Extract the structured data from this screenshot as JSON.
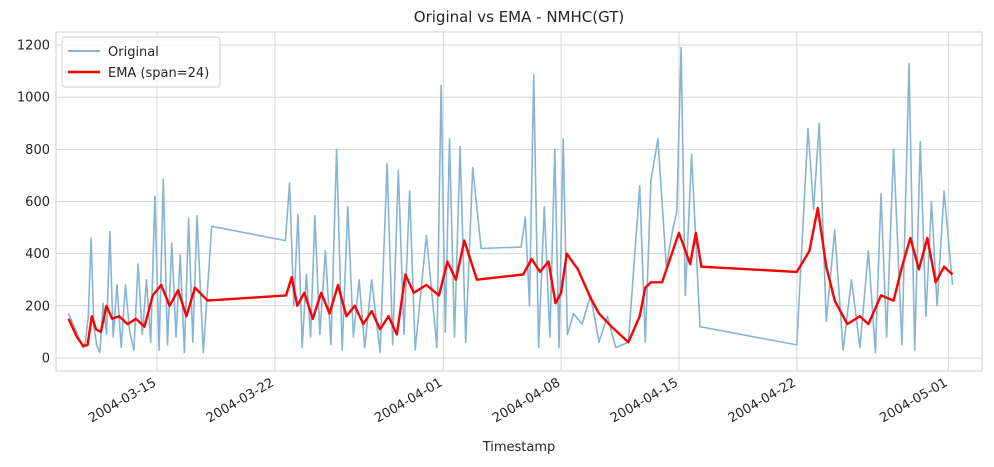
{
  "chart_data": {
    "type": "line",
    "title": "Original vs EMA - NMHC(GT)",
    "xlabel": "Timestamp",
    "ylabel": "",
    "x_axis": {
      "kind": "date",
      "range": [
        "2004-03-09",
        "2004-05-03"
      ],
      "tick_values": [
        "2004-03-15",
        "2004-03-22",
        "2004-04-01",
        "2004-04-08",
        "2004-04-15",
        "2004-04-22",
        "2004-05-01"
      ],
      "tick_labels": [
        "2004-03-15",
        "2004-03-22",
        "2004-04-01",
        "2004-04-08",
        "2004-04-15",
        "2004-04-22",
        "2004-05-01"
      ]
    },
    "y_axis": {
      "range": [
        -50,
        1250
      ],
      "tick_values": [
        0,
        200,
        400,
        600,
        800,
        1000,
        1200
      ],
      "tick_labels": [
        "0",
        "200",
        "400",
        "600",
        "800",
        "1000",
        "1200"
      ]
    },
    "grid": true,
    "legend_position": "top-left",
    "series": [
      {
        "name": "Original",
        "color": "#86b4d4",
        "points": [
          [
            "2004-03-10",
            170
          ],
          [
            "2004-03-10",
            95
          ],
          [
            "2004-03-11",
            40
          ],
          [
            "2004-03-11",
            60
          ],
          [
            "2004-03-11",
            160
          ],
          [
            "2004-03-11",
            460
          ],
          [
            "2004-03-11",
            120
          ],
          [
            "2004-03-11",
            50
          ],
          [
            "2004-03-12",
            20
          ],
          [
            "2004-03-12",
            210
          ],
          [
            "2004-03-12",
            90
          ],
          [
            "2004-03-12",
            485
          ],
          [
            "2004-03-12",
            80
          ],
          [
            "2004-03-13",
            280
          ],
          [
            "2004-03-13",
            40
          ],
          [
            "2004-03-13",
            280
          ],
          [
            "2004-03-13",
            100
          ],
          [
            "2004-03-14",
            30
          ],
          [
            "2004-03-14",
            360
          ],
          [
            "2004-03-14",
            90
          ],
          [
            "2004-03-14",
            300
          ],
          [
            "2004-03-15",
            60
          ],
          [
            "2004-03-15",
            620
          ],
          [
            "2004-03-15",
            30
          ],
          [
            "2004-03-15",
            685
          ],
          [
            "2004-03-16",
            50
          ],
          [
            "2004-03-16",
            440
          ],
          [
            "2004-03-16",
            80
          ],
          [
            "2004-03-16",
            395
          ],
          [
            "2004-03-17",
            20
          ],
          [
            "2004-03-17",
            535
          ],
          [
            "2004-03-17",
            60
          ],
          [
            "2004-03-17",
            545
          ],
          [
            "2004-03-18",
            20
          ],
          [
            "2004-03-18",
            505
          ],
          [
            "2004-03-23",
            450
          ],
          [
            "2004-03-23",
            670
          ],
          [
            "2004-03-23",
            200
          ],
          [
            "2004-03-23",
            550
          ],
          [
            "2004-03-24",
            40
          ],
          [
            "2004-03-24",
            320
          ],
          [
            "2004-03-24",
            80
          ],
          [
            "2004-03-24",
            545
          ],
          [
            "2004-03-25",
            90
          ],
          [
            "2004-03-25",
            410
          ],
          [
            "2004-03-25",
            50
          ],
          [
            "2004-03-26",
            800
          ],
          [
            "2004-03-26",
            30
          ],
          [
            "2004-03-26",
            580
          ],
          [
            "2004-03-27",
            80
          ],
          [
            "2004-03-27",
            300
          ],
          [
            "2004-03-27",
            40
          ],
          [
            "2004-03-28",
            300
          ],
          [
            "2004-03-28",
            20
          ],
          [
            "2004-03-29",
            745
          ],
          [
            "2004-03-29",
            50
          ],
          [
            "2004-03-29",
            720
          ],
          [
            "2004-03-30",
            90
          ],
          [
            "2004-03-30",
            640
          ],
          [
            "2004-03-30",
            30
          ],
          [
            "2004-03-31",
            470
          ],
          [
            "2004-04-01",
            40
          ],
          [
            "2004-04-01",
            1045
          ],
          [
            "2004-04-01",
            100
          ],
          [
            "2004-04-01",
            840
          ],
          [
            "2004-04-02",
            80
          ],
          [
            "2004-04-02",
            810
          ],
          [
            "2004-04-02",
            60
          ],
          [
            "2004-04-03",
            730
          ],
          [
            "2004-04-03",
            420
          ],
          [
            "2004-04-06",
            425
          ],
          [
            "2004-04-06",
            540
          ],
          [
            "2004-04-06",
            200
          ],
          [
            "2004-04-06",
            1085
          ],
          [
            "2004-04-07",
            40
          ],
          [
            "2004-04-07",
            580
          ],
          [
            "2004-04-07",
            80
          ],
          [
            "2004-04-08",
            800
          ],
          [
            "2004-04-08",
            40
          ],
          [
            "2004-04-08",
            840
          ],
          [
            "2004-04-08",
            90
          ],
          [
            "2004-04-09",
            170
          ],
          [
            "2004-04-09",
            130
          ],
          [
            "2004-04-10",
            240
          ],
          [
            "2004-04-10",
            60
          ],
          [
            "2004-04-11",
            160
          ],
          [
            "2004-04-11",
            40
          ],
          [
            "2004-04-12",
            60
          ],
          [
            "2004-04-13",
            660
          ],
          [
            "2004-04-13",
            60
          ],
          [
            "2004-04-13",
            680
          ],
          [
            "2004-04-14",
            840
          ],
          [
            "2004-04-14",
            350
          ],
          [
            "2004-04-15",
            490
          ],
          [
            "2004-04-15",
            560
          ],
          [
            "2004-04-15",
            1190
          ],
          [
            "2004-04-15",
            240
          ],
          [
            "2004-04-16",
            780
          ],
          [
            "2004-04-16",
            120
          ],
          [
            "2004-04-22",
            50
          ],
          [
            "2004-04-23",
            880
          ],
          [
            "2004-04-23",
            570
          ],
          [
            "2004-04-23",
            900
          ],
          [
            "2004-04-24",
            140
          ],
          [
            "2004-04-24",
            490
          ],
          [
            "2004-04-25",
            30
          ],
          [
            "2004-04-25",
            300
          ],
          [
            "2004-04-26",
            40
          ],
          [
            "2004-04-26",
            410
          ],
          [
            "2004-04-27",
            20
          ],
          [
            "2004-04-27",
            630
          ],
          [
            "2004-04-27",
            80
          ],
          [
            "2004-04-28",
            800
          ],
          [
            "2004-04-28",
            50
          ],
          [
            "2004-04-29",
            1130
          ],
          [
            "2004-04-29",
            30
          ],
          [
            "2004-04-29",
            830
          ],
          [
            "2004-04-30",
            160
          ],
          [
            "2004-04-30",
            600
          ],
          [
            "2004-04-30",
            200
          ],
          [
            "2004-05-01",
            640
          ],
          [
            "2004-05-01",
            280
          ]
        ]
      },
      {
        "name": "EMA (span=24)",
        "color": "#ff0000",
        "points": [
          [
            "2004-03-10",
            150
          ],
          [
            "2004-03-10",
            80
          ],
          [
            "2004-03-11",
            45
          ],
          [
            "2004-03-11",
            50
          ],
          [
            "2004-03-11",
            160
          ],
          [
            "2004-03-11",
            110
          ],
          [
            "2004-03-12",
            100
          ],
          [
            "2004-03-12",
            200
          ],
          [
            "2004-03-12",
            150
          ],
          [
            "2004-03-13",
            160
          ],
          [
            "2004-03-13",
            130
          ],
          [
            "2004-03-14",
            150
          ],
          [
            "2004-03-14",
            120
          ],
          [
            "2004-03-15",
            240
          ],
          [
            "2004-03-15",
            280
          ],
          [
            "2004-03-16",
            200
          ],
          [
            "2004-03-16",
            260
          ],
          [
            "2004-03-17",
            160
          ],
          [
            "2004-03-17",
            270
          ],
          [
            "2004-03-18",
            220
          ],
          [
            "2004-03-23",
            240
          ],
          [
            "2004-03-23",
            310
          ],
          [
            "2004-03-23",
            200
          ],
          [
            "2004-03-24",
            250
          ],
          [
            "2004-03-24",
            150
          ],
          [
            "2004-03-25",
            250
          ],
          [
            "2004-03-25",
            170
          ],
          [
            "2004-03-26",
            280
          ],
          [
            "2004-03-26",
            160
          ],
          [
            "2004-03-27",
            200
          ],
          [
            "2004-03-27",
            130
          ],
          [
            "2004-03-28",
            180
          ],
          [
            "2004-03-28",
            110
          ],
          [
            "2004-03-29",
            160
          ],
          [
            "2004-03-29",
            90
          ],
          [
            "2004-03-30",
            320
          ],
          [
            "2004-03-30",
            250
          ],
          [
            "2004-03-31",
            280
          ],
          [
            "2004-04-01",
            240
          ],
          [
            "2004-04-01",
            370
          ],
          [
            "2004-04-02",
            300
          ],
          [
            "2004-04-02",
            450
          ],
          [
            "2004-04-03",
            300
          ],
          [
            "2004-04-06",
            320
          ],
          [
            "2004-04-06",
            380
          ],
          [
            "2004-04-07",
            330
          ],
          [
            "2004-04-07",
            370
          ],
          [
            "2004-04-08",
            210
          ],
          [
            "2004-04-08",
            250
          ],
          [
            "2004-04-08",
            400
          ],
          [
            "2004-04-09",
            340
          ],
          [
            "2004-04-10",
            230
          ],
          [
            "2004-04-10",
            170
          ],
          [
            "2004-04-11",
            120
          ],
          [
            "2004-04-12",
            60
          ],
          [
            "2004-04-13",
            160
          ],
          [
            "2004-04-13",
            270
          ],
          [
            "2004-04-13",
            290
          ],
          [
            "2004-04-14",
            290
          ],
          [
            "2004-04-15",
            480
          ],
          [
            "2004-04-16",
            360
          ],
          [
            "2004-04-16",
            480
          ],
          [
            "2004-04-16",
            350
          ],
          [
            "2004-04-22",
            330
          ],
          [
            "2004-04-23",
            410
          ],
          [
            "2004-04-23",
            575
          ],
          [
            "2004-04-24",
            350
          ],
          [
            "2004-04-24",
            220
          ],
          [
            "2004-04-25",
            130
          ],
          [
            "2004-04-26",
            160
          ],
          [
            "2004-04-26",
            130
          ],
          [
            "2004-04-27",
            240
          ],
          [
            "2004-04-28",
            220
          ],
          [
            "2004-04-28",
            350
          ],
          [
            "2004-04-29",
            460
          ],
          [
            "2004-04-29",
            340
          ],
          [
            "2004-04-30",
            460
          ],
          [
            "2004-04-30",
            290
          ],
          [
            "2004-05-01",
            350
          ],
          [
            "2004-05-01",
            320
          ]
        ]
      }
    ]
  }
}
